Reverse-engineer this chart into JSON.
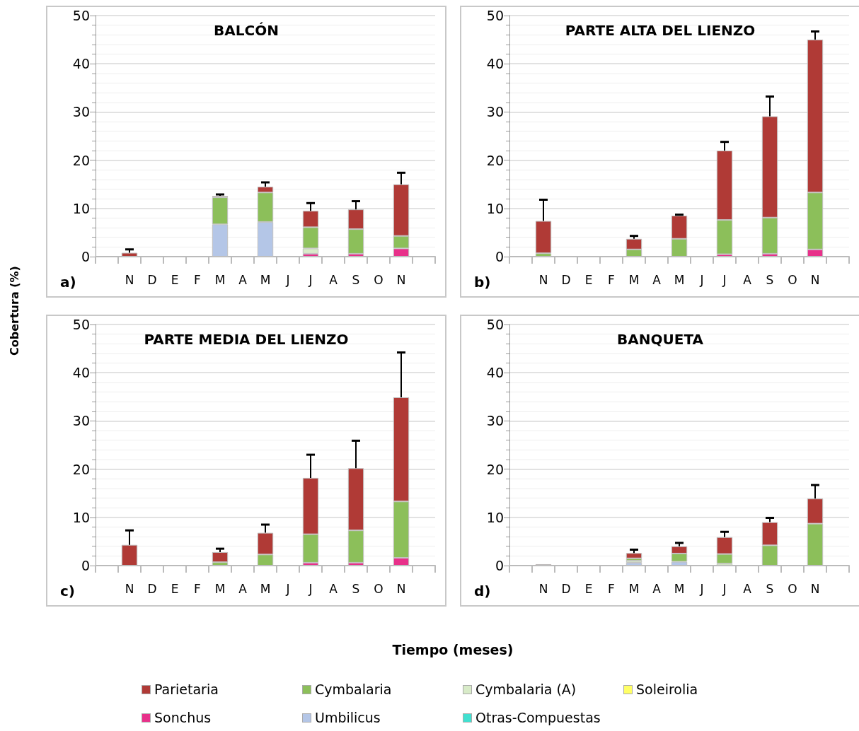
{
  "chart_data": [
    {
      "type": "bar",
      "title": "BALCÓN",
      "ylabel": "Cobertura (%)",
      "xlabel": "Tiempo (meses)",
      "annotations": [
        "a)"
      ],
      "stacked": true,
      "grid": "y",
      "legend": "bottom",
      "categories": [
        null,
        "N",
        "D",
        "E",
        "F",
        "M",
        "A",
        "M",
        "J",
        "J",
        "A",
        "S",
        "O",
        "N",
        null
      ],
      "ylim": [
        0,
        50
      ],
      "yticks": [
        0,
        10,
        20,
        30,
        40,
        50
      ],
      "series": [
        {
          "name": "Otras-Compuestas",
          "color": "#40e0d0",
          "values": [
            null,
            null,
            null,
            null,
            null,
            null,
            null,
            null,
            null,
            null,
            null,
            null,
            null,
            null,
            null
          ]
        },
        {
          "name": "Umbilicus",
          "color": "#b4c6e7",
          "values": [
            null,
            null,
            null,
            null,
            null,
            6.7,
            null,
            7.2,
            null,
            null,
            null,
            null,
            null,
            null,
            null
          ]
        },
        {
          "name": "Sonchus",
          "color": "#e8308a",
          "values": [
            null,
            null,
            null,
            null,
            null,
            null,
            null,
            null,
            null,
            0.6,
            null,
            0.6,
            null,
            1.7,
            null
          ]
        },
        {
          "name": "Soleirolia",
          "color": "#ffff66",
          "values": [
            null,
            null,
            null,
            null,
            null,
            null,
            null,
            null,
            null,
            null,
            null,
            null,
            null,
            null,
            null
          ]
        },
        {
          "name": "Cymbalaria (A)",
          "color": "#d8ebc8",
          "values": [
            null,
            null,
            null,
            null,
            null,
            null,
            null,
            null,
            null,
            1.1,
            null,
            null,
            null,
            null,
            null
          ]
        },
        {
          "name": "Cymbalaria",
          "color": "#8cbf5a",
          "values": [
            null,
            null,
            null,
            null,
            null,
            5.6,
            null,
            6.1,
            null,
            4.4,
            null,
            5.1,
            null,
            2.6,
            null
          ]
        },
        {
          "name": "Parietaria",
          "color": "#b03a36",
          "values": [
            null,
            0.8,
            null,
            null,
            null,
            0.3,
            null,
            1.2,
            null,
            3.4,
            null,
            4.1,
            null,
            10.7,
            null
          ],
          "errors": [
            null,
            [
              0.8,
              1.5
            ],
            null,
            null,
            null,
            [
              12.6,
              12.9
            ],
            null,
            [
              14.5,
              15.4
            ],
            null,
            [
              9.5,
              11.1
            ],
            null,
            [
              9.8,
              11.5
            ],
            null,
            [
              15.0,
              17.4
            ],
            null
          ]
        }
      ]
    },
    {
      "type": "bar",
      "title": "PARTE ALTA DEL LIENZO",
      "annotations": [
        "b)"
      ],
      "stacked": true,
      "grid": "y",
      "categories": [
        null,
        "N",
        "D",
        "E",
        "F",
        "M",
        "A",
        "M",
        "J",
        "J",
        "A",
        "S",
        "O",
        "N",
        null
      ],
      "ylim": [
        0,
        50
      ],
      "yticks": [
        0,
        10,
        20,
        30,
        40,
        50
      ],
      "series": [
        {
          "color": "#e8308a",
          "values": [
            null,
            null,
            null,
            null,
            null,
            null,
            null,
            null,
            null,
            0.5,
            null,
            0.6,
            null,
            1.5,
            null
          ]
        },
        {
          "color": "#8cbf5a",
          "values": [
            null,
            0.7,
            null,
            null,
            null,
            1.5,
            null,
            3.7,
            null,
            7.1,
            null,
            7.5,
            null,
            11.8,
            null
          ]
        },
        {
          "color": "#b03a36",
          "values": [
            null,
            6.7,
            null,
            null,
            null,
            2.2,
            null,
            4.8,
            null,
            14.4,
            null,
            21.0,
            null,
            31.7,
            null
          ],
          "errors": [
            null,
            [
              7.4,
              11.8
            ],
            null,
            null,
            null,
            [
              3.7,
              4.3
            ],
            null,
            [
              8.5,
              8.7
            ],
            null,
            [
              22.0,
              23.8
            ],
            null,
            [
              29.1,
              33.2
            ],
            null,
            [
              45.0,
              46.7
            ],
            null
          ]
        }
      ]
    },
    {
      "type": "bar",
      "title": "PARTE MEDIA DEL LIENZO",
      "annotations": [
        "c)"
      ],
      "stacked": true,
      "grid": "y",
      "categories": [
        null,
        "N",
        "D",
        "E",
        "F",
        "M",
        "A",
        "M",
        "J",
        "J",
        "A",
        "S",
        "O",
        "N",
        null
      ],
      "ylim": [
        0,
        50
      ],
      "yticks": [
        0,
        10,
        20,
        30,
        40,
        50
      ],
      "series": [
        {
          "color": "#e8308a",
          "values": [
            null,
            null,
            null,
            null,
            null,
            null,
            null,
            null,
            null,
            0.6,
            null,
            0.6,
            null,
            1.6,
            null
          ]
        },
        {
          "color": "#8cbf5a",
          "values": [
            null,
            null,
            null,
            null,
            null,
            0.7,
            null,
            2.3,
            null,
            5.9,
            null,
            6.7,
            null,
            11.7,
            null
          ]
        },
        {
          "color": "#b03a36",
          "values": [
            null,
            4.3,
            null,
            null,
            null,
            2.1,
            null,
            4.5,
            null,
            11.7,
            null,
            12.9,
            null,
            21.6,
            null
          ],
          "errors": [
            null,
            [
              4.3,
              7.3
            ],
            null,
            null,
            null,
            [
              2.8,
              3.5
            ],
            null,
            [
              6.8,
              8.5
            ],
            null,
            [
              18.2,
              23.0
            ],
            null,
            [
              20.2,
              25.9
            ],
            null,
            [
              34.9,
              44.2
            ],
            null
          ]
        }
      ]
    },
    {
      "type": "bar",
      "title": "BANQUETA",
      "annotations": [
        "d)"
      ],
      "stacked": true,
      "grid": "y",
      "categories": [
        null,
        "N",
        "D",
        "E",
        "F",
        "M",
        "A",
        "M",
        "J",
        "J",
        "A",
        "S",
        "O",
        "N",
        null
      ],
      "ylim": [
        0,
        50
      ],
      "yticks": [
        0,
        10,
        20,
        30,
        40,
        50
      ],
      "series": [
        {
          "color": "#b4c6e7",
          "values": [
            null,
            null,
            null,
            null,
            null,
            0.6,
            null,
            0.8,
            null,
            null,
            null,
            null,
            null,
            null,
            null
          ]
        },
        {
          "color": "#d8ebc8",
          "values": [
            null,
            null,
            null,
            null,
            null,
            0.4,
            null,
            null,
            null,
            0.4,
            null,
            null,
            null,
            null,
            null
          ]
        },
        {
          "color": "#8cbf5a",
          "values": [
            null,
            null,
            null,
            null,
            null,
            0.5,
            null,
            1.7,
            null,
            2.0,
            null,
            4.2,
            null,
            8.7,
            null
          ]
        },
        {
          "color": "#b03a36",
          "values": [
            null,
            0.3,
            null,
            null,
            null,
            1.1,
            null,
            1.5,
            null,
            3.5,
            null,
            4.8,
            null,
            5.2,
            null
          ],
          "errors": [
            null,
            null,
            null,
            null,
            null,
            [
              2.6,
              3.3
            ],
            null,
            [
              4.0,
              4.7
            ],
            null,
            [
              5.9,
              7.0
            ],
            null,
            [
              9.0,
              9.9
            ],
            null,
            [
              13.9,
              16.7
            ],
            null
          ]
        }
      ]
    }
  ]
}
